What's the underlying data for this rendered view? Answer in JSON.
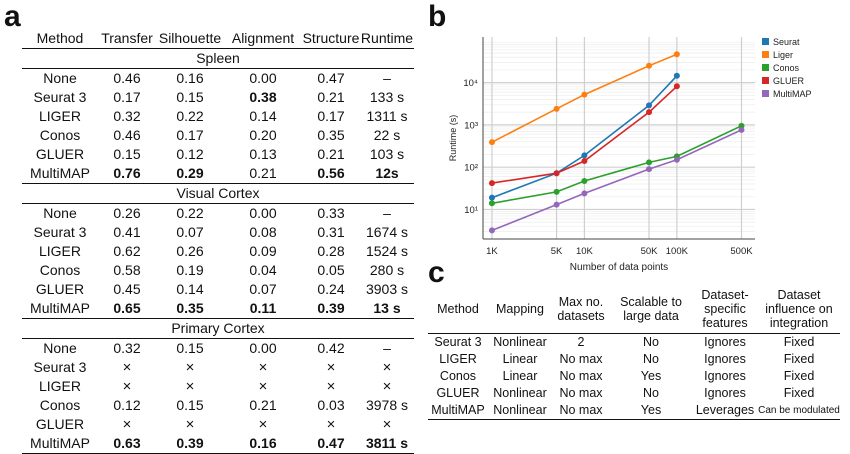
{
  "panel_a": {
    "letter": "a",
    "headers": [
      "Method",
      "Transfer",
      "Silhouette",
      "Alignment",
      "Structure",
      "Runtime"
    ],
    "sections": [
      {
        "title": "Spleen",
        "rows": [
          {
            "cells": [
              "None",
              "0.46",
              "0.16",
              "0.00",
              "0.47",
              "–"
            ],
            "bold": []
          },
          {
            "cells": [
              "Seurat 3",
              "0.17",
              "0.15",
              "0.38",
              "0.21",
              "133 s"
            ],
            "bold": [
              3
            ]
          },
          {
            "cells": [
              "LIGER",
              "0.32",
              "0.22",
              "0.14",
              "0.17",
              "1311 s"
            ],
            "bold": []
          },
          {
            "cells": [
              "Conos",
              "0.46",
              "0.17",
              "0.20",
              "0.35",
              "22 s"
            ],
            "bold": []
          },
          {
            "cells": [
              "GLUER",
              "0.15",
              "0.12",
              "0.13",
              "0.21",
              "103 s"
            ],
            "bold": []
          },
          {
            "cells": [
              "MultiMAP",
              "0.76",
              "0.29",
              "0.21",
              "0.56",
              "12s"
            ],
            "bold": [
              1,
              2,
              4,
              5
            ]
          }
        ]
      },
      {
        "title": "Visual Cortex",
        "rows": [
          {
            "cells": [
              "None",
              "0.26",
              "0.22",
              "0.00",
              "0.33",
              "–"
            ],
            "bold": []
          },
          {
            "cells": [
              "Seurat 3",
              "0.41",
              "0.07",
              "0.08",
              "0.31",
              "1674 s"
            ],
            "bold": []
          },
          {
            "cells": [
              "LIGER",
              "0.62",
              "0.26",
              "0.09",
              "0.28",
              "1524 s"
            ],
            "bold": []
          },
          {
            "cells": [
              "Conos",
              "0.58",
              "0.19",
              "0.04",
              "0.05",
              "280 s"
            ],
            "bold": []
          },
          {
            "cells": [
              "GLUER",
              "0.45",
              "0.14",
              "0.07",
              "0.24",
              "3903 s"
            ],
            "bold": []
          },
          {
            "cells": [
              "MultiMAP",
              "0.65",
              "0.35",
              "0.11",
              "0.39",
              "13 s"
            ],
            "bold": [
              1,
              2,
              3,
              4,
              5
            ]
          }
        ]
      },
      {
        "title": "Primary Cortex",
        "rows": [
          {
            "cells": [
              "None",
              "0.32",
              "0.15",
              "0.00",
              "0.42",
              "–"
            ],
            "bold": []
          },
          {
            "cells": [
              "Seurat 3",
              "×",
              "×",
              "×",
              "×",
              "×"
            ],
            "bold": []
          },
          {
            "cells": [
              "LIGER",
              "×",
              "×",
              "×",
              "×",
              "×"
            ],
            "bold": []
          },
          {
            "cells": [
              "Conos",
              "0.12",
              "0.15",
              "0.21",
              "0.03",
              "3978 s"
            ],
            "bold": []
          },
          {
            "cells": [
              "GLUER",
              "×",
              "×",
              "×",
              "×",
              "×"
            ],
            "bold": []
          },
          {
            "cells": [
              "MultiMAP",
              "0.63",
              "0.39",
              "0.16",
              "0.47",
              "3811 s"
            ],
            "bold": [
              1,
              2,
              3,
              4,
              5
            ]
          }
        ]
      }
    ]
  },
  "panel_b": {
    "letter": "b"
  },
  "chart_data": {
    "type": "line",
    "xlabel": "Number of data points",
    "ylabel": "Runtime (s)",
    "xscale": "log",
    "yscale": "log",
    "xlim": [
      800,
      700000
    ],
    "ylim": [
      2,
      120000
    ],
    "x_ticks": [
      1000,
      5000,
      10000,
      50000,
      100000,
      500000
    ],
    "x_tick_labels": [
      "1K",
      "5K",
      "10K",
      "50K",
      "100K",
      "500K"
    ],
    "y_ticks": [
      10,
      100,
      1000,
      10000
    ],
    "y_tick_labels": [
      "10¹",
      "10²",
      "10³",
      "10⁴"
    ],
    "grid": true,
    "legend_position": "right",
    "series": [
      {
        "name": "Seurat",
        "color": "#1f77b4",
        "x": [
          1000,
          5000,
          10000,
          50000,
          100000
        ],
        "y": [
          19,
          72,
          190,
          2900,
          14500
        ]
      },
      {
        "name": "Liger",
        "color": "#ff7f0e",
        "x": [
          1000,
          5000,
          10000,
          50000,
          100000
        ],
        "y": [
          390,
          2400,
          5200,
          25000,
          47000
        ]
      },
      {
        "name": "Conos",
        "color": "#2ca02c",
        "x": [
          1000,
          5000,
          10000,
          50000,
          100000,
          500000
        ],
        "y": [
          14,
          26,
          47,
          130,
          180,
          950
        ]
      },
      {
        "name": "GLUER",
        "color": "#d62728",
        "x": [
          1000,
          5000,
          10000,
          50000,
          100000
        ],
        "y": [
          42,
          72,
          140,
          2000,
          8200
        ]
      },
      {
        "name": "MultiMAP",
        "color": "#9467bd",
        "x": [
          1000,
          5000,
          10000,
          50000,
          100000,
          500000
        ],
        "y": [
          3.2,
          13,
          24,
          90,
          150,
          760
        ]
      }
    ]
  },
  "panel_c": {
    "letter": "c",
    "headers": [
      "Method",
      "Mapping",
      "Max no. datasets",
      "Scalable to large data",
      "Dataset-specific features",
      "Dataset influence on integration"
    ],
    "rows": [
      [
        "Seurat 3",
        "Nonlinear",
        "2",
        "No",
        "Ignores",
        "Fixed"
      ],
      [
        "LIGER",
        "Linear",
        "No max",
        "No",
        "Ignores",
        "Fixed"
      ],
      [
        "Conos",
        "Linear",
        "No max",
        "Yes",
        "Ignores",
        "Fixed"
      ],
      [
        "GLUER",
        "Nonlinear",
        "No max",
        "No",
        "Ignores",
        "Fixed"
      ],
      [
        "MultiMAP",
        "Nonlinear",
        "No max",
        "Yes",
        "Leverages",
        "Can be modulated"
      ]
    ]
  }
}
